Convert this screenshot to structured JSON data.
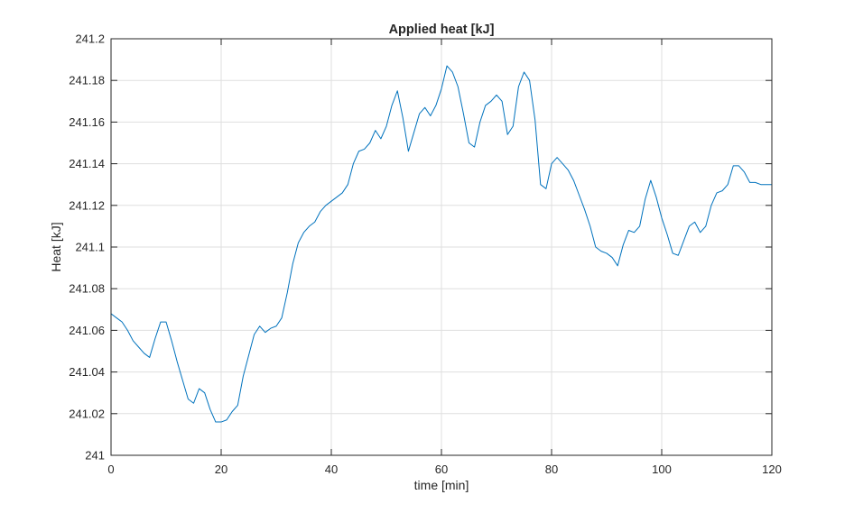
{
  "chart_data": {
    "type": "line",
    "title": "Applied heat [kJ]",
    "xlabel": "time [min]",
    "ylabel": "Heat [kJ]",
    "xlim": [
      0,
      120
    ],
    "ylim": [
      241,
      241.2
    ],
    "xticks": [
      0,
      20,
      40,
      60,
      80,
      100,
      120
    ],
    "yticks": [
      241,
      241.02,
      241.04,
      241.06,
      241.08,
      241.1,
      241.12,
      241.14,
      241.16,
      241.18,
      241.2
    ],
    "xtick_labels": [
      "0",
      "20",
      "40",
      "60",
      "80",
      "100",
      "120"
    ],
    "ytick_labels": [
      "241",
      "241.02",
      "241.04",
      "241.06",
      "241.08",
      "241.1",
      "241.12",
      "241.14",
      "241.16",
      "241.18",
      "241.2"
    ],
    "grid": true,
    "legend": "none",
    "series": [
      {
        "color": "#0072bd",
        "x": [
          0,
          1,
          2,
          3,
          4,
          5,
          6,
          7,
          8,
          9,
          10,
          11,
          12,
          13,
          14,
          15,
          16,
          17,
          18,
          19,
          20,
          21,
          22,
          23,
          24,
          25,
          26,
          27,
          28,
          29,
          30,
          31,
          32,
          33,
          34,
          35,
          36,
          37,
          38,
          39,
          40,
          41,
          42,
          43,
          44,
          45,
          46,
          47,
          48,
          49,
          50,
          51,
          52,
          53,
          54,
          55,
          56,
          57,
          58,
          59,
          60,
          61,
          62,
          63,
          64,
          65,
          66,
          67,
          68,
          69,
          70,
          71,
          72,
          73,
          74,
          75,
          76,
          77,
          78,
          79,
          80,
          81,
          82,
          83,
          84,
          85,
          86,
          87,
          88,
          89,
          90,
          91,
          92,
          93,
          94,
          95,
          96,
          97,
          98,
          99,
          100,
          101,
          102,
          103,
          104,
          105,
          106,
          107,
          108,
          109,
          110,
          111,
          112,
          113,
          114,
          115,
          116,
          117,
          118,
          119,
          120
        ],
        "y": [
          241.068,
          241.066,
          241.064,
          241.06,
          241.055,
          241.052,
          241.049,
          241.047,
          241.056,
          241.064,
          241.064,
          241.055,
          241.045,
          241.036,
          241.027,
          241.025,
          241.032,
          241.03,
          241.022,
          241.016,
          241.016,
          241.017,
          241.021,
          241.024,
          241.038,
          241.048,
          241.058,
          241.062,
          241.059,
          241.061,
          241.062,
          241.066,
          241.078,
          241.092,
          241.102,
          241.107,
          241.11,
          241.112,
          241.117,
          241.12,
          241.122,
          241.124,
          241.126,
          241.13,
          241.14,
          241.146,
          241.147,
          241.15,
          241.156,
          241.152,
          241.158,
          241.168,
          241.175,
          241.162,
          241.146,
          241.155,
          241.164,
          241.167,
          241.163,
          241.168,
          241.176,
          241.187,
          241.184,
          241.177,
          241.164,
          241.15,
          241.148,
          241.16,
          241.168,
          241.17,
          241.173,
          241.17,
          241.154,
          241.158,
          241.177,
          241.184,
          241.18,
          241.161,
          241.13,
          241.128,
          241.14,
          241.143,
          241.14,
          241.137,
          241.132,
          241.125,
          241.118,
          241.11,
          241.1,
          241.098,
          241.097,
          241.095,
          241.091,
          241.101,
          241.108,
          241.107,
          241.11,
          241.123,
          241.132,
          241.124,
          241.114,
          241.106,
          241.097,
          241.096,
          241.103,
          241.11,
          241.112,
          241.107,
          241.11,
          241.12,
          241.126,
          241.127,
          241.13,
          241.139,
          241.139,
          241.136,
          241.131,
          241.131,
          241.13,
          241.13,
          241.13
        ]
      }
    ]
  }
}
